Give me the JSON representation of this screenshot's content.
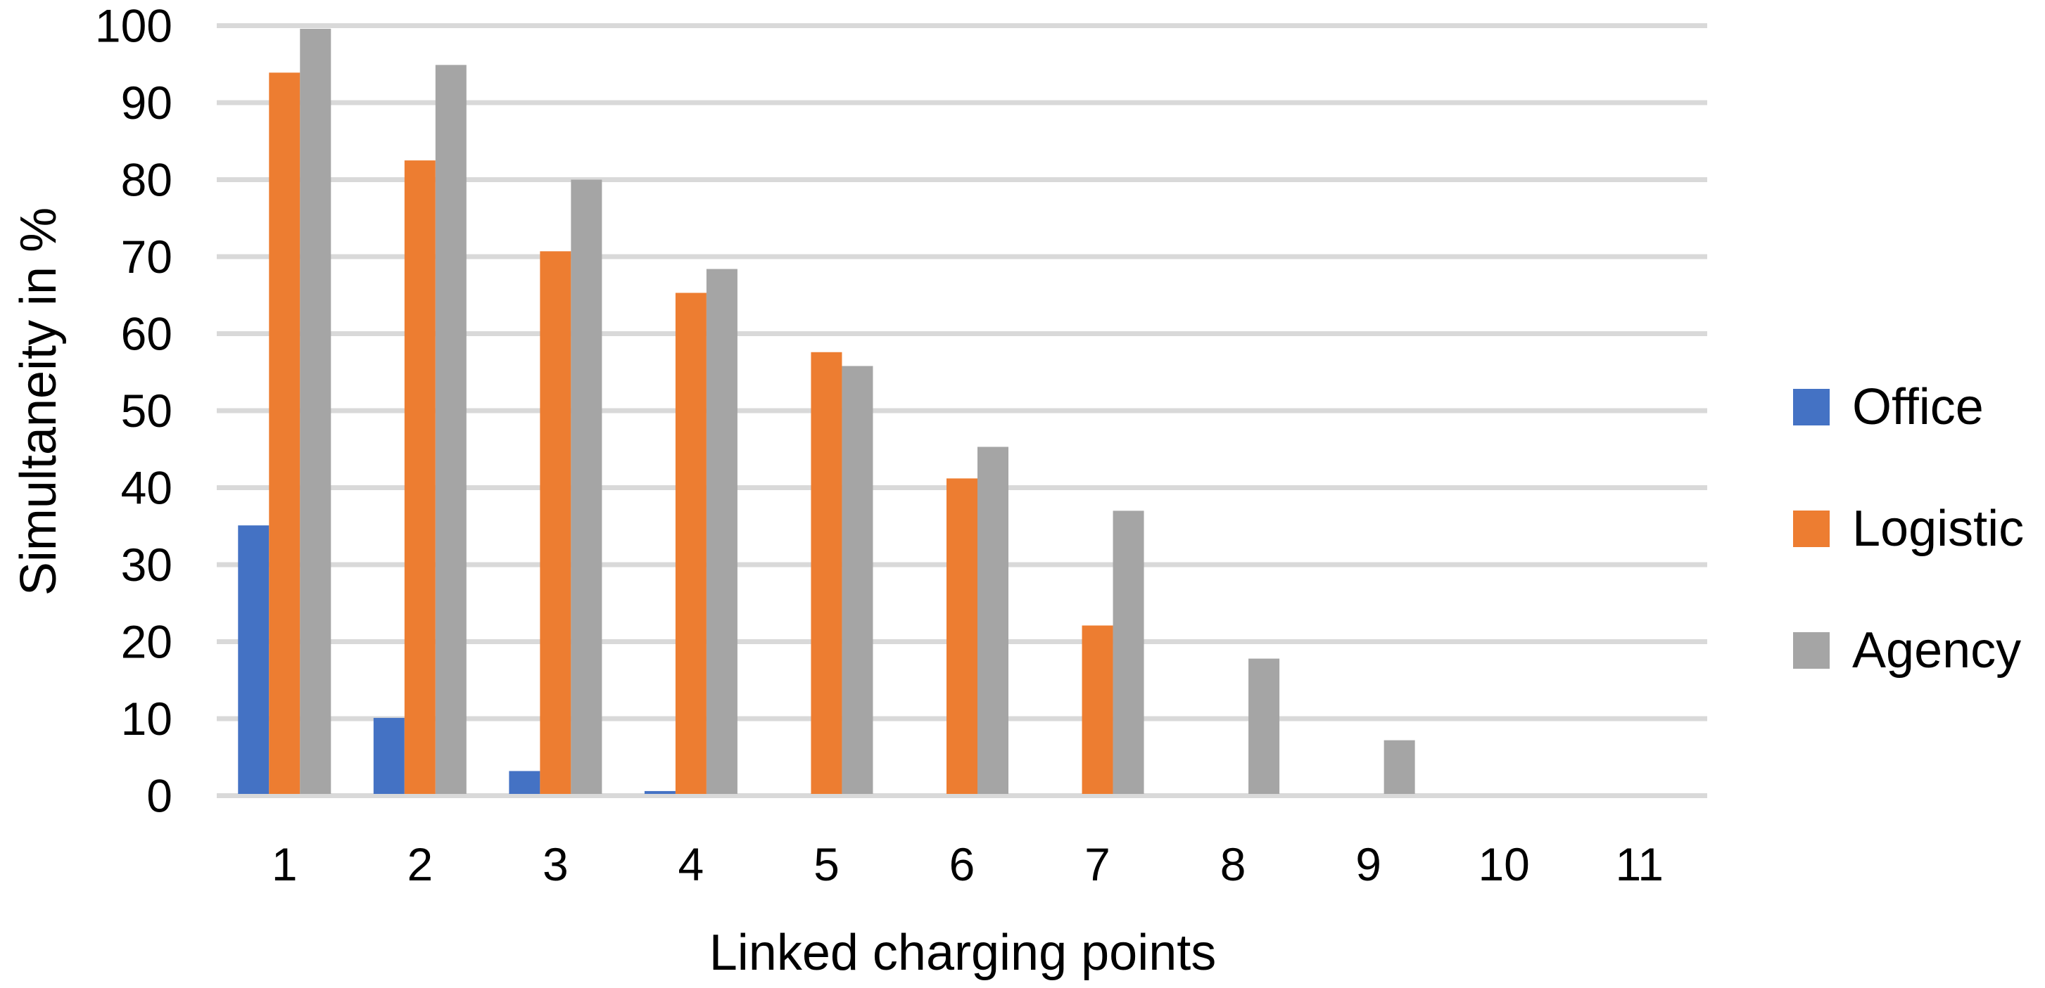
{
  "chart_data": {
    "type": "bar",
    "title": "",
    "xlabel": "Linked charging points",
    "ylabel": "Simultaneity in %",
    "categories": [
      "1",
      "2",
      "3",
      "4",
      "5",
      "6",
      "7",
      "8",
      "9",
      "10",
      "11"
    ],
    "series": [
      {
        "name": "Office",
        "color": "#4472C4",
        "values": [
          35.1,
          10.1,
          3.2,
          0.6,
          0,
          0,
          0,
          0,
          0,
          0,
          0
        ]
      },
      {
        "name": "Logistic",
        "color": "#ED7D31",
        "values": [
          93.9,
          82.5,
          70.7,
          65.3,
          57.6,
          41.2,
          22.1,
          0,
          0,
          0,
          0
        ]
      },
      {
        "name": "Agency",
        "color": "#A5A5A5",
        "values": [
          99.6,
          94.9,
          80.0,
          68.4,
          55.8,
          45.3,
          37.0,
          17.8,
          7.2,
          0,
          0
        ]
      }
    ],
    "y_ticks": [
      0,
      10,
      20,
      30,
      40,
      50,
      60,
      70,
      80,
      90,
      100
    ],
    "ylim": [
      0,
      100
    ],
    "grid": true,
    "grid_color": "#D9D9D9",
    "axis_line_color": "#D9D9D9",
    "tick_label_color": "#000000",
    "background_color": "#FFFFFF",
    "legend_position": "right",
    "bar_group_order": [
      "Office",
      "Logistic",
      "Agency"
    ]
  }
}
